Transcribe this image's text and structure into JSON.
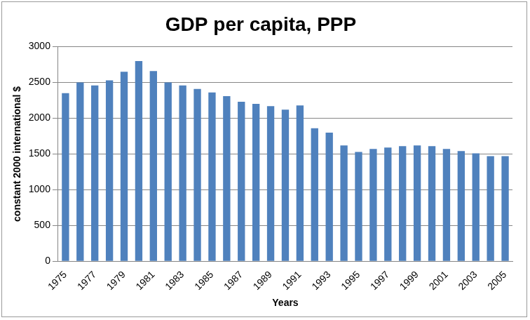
{
  "chart_data": {
    "type": "bar",
    "title": "GDP per capita, PPP",
    "x_label": "Years",
    "y_label": "constant 2000 international $",
    "categories": [
      "1975",
      null,
      "1977",
      null,
      "1979",
      null,
      "1981",
      null,
      "1983",
      null,
      "1985",
      null,
      "1987",
      null,
      "1989",
      null,
      "1991",
      null,
      "1993",
      null,
      "1995",
      null,
      "1997",
      null,
      "1999",
      null,
      "2001",
      null,
      "2003",
      null,
      "2005"
    ],
    "values": [
      2350,
      2500,
      2460,
      2530,
      2650,
      2800,
      2660,
      2500,
      2460,
      2410,
      2360,
      2310,
      2230,
      2200,
      2170,
      2120,
      2180,
      1860,
      1800,
      1620,
      1530,
      1570,
      1590,
      1610,
      1620,
      1610,
      1570,
      1540,
      1510,
      1470,
      1470
    ],
    "color": "#4f81bd",
    "ylim": [
      0,
      3000
    ],
    "yticks": [
      0,
      500,
      1000,
      1500,
      2000,
      2500,
      3000
    ],
    "grid": true
  }
}
